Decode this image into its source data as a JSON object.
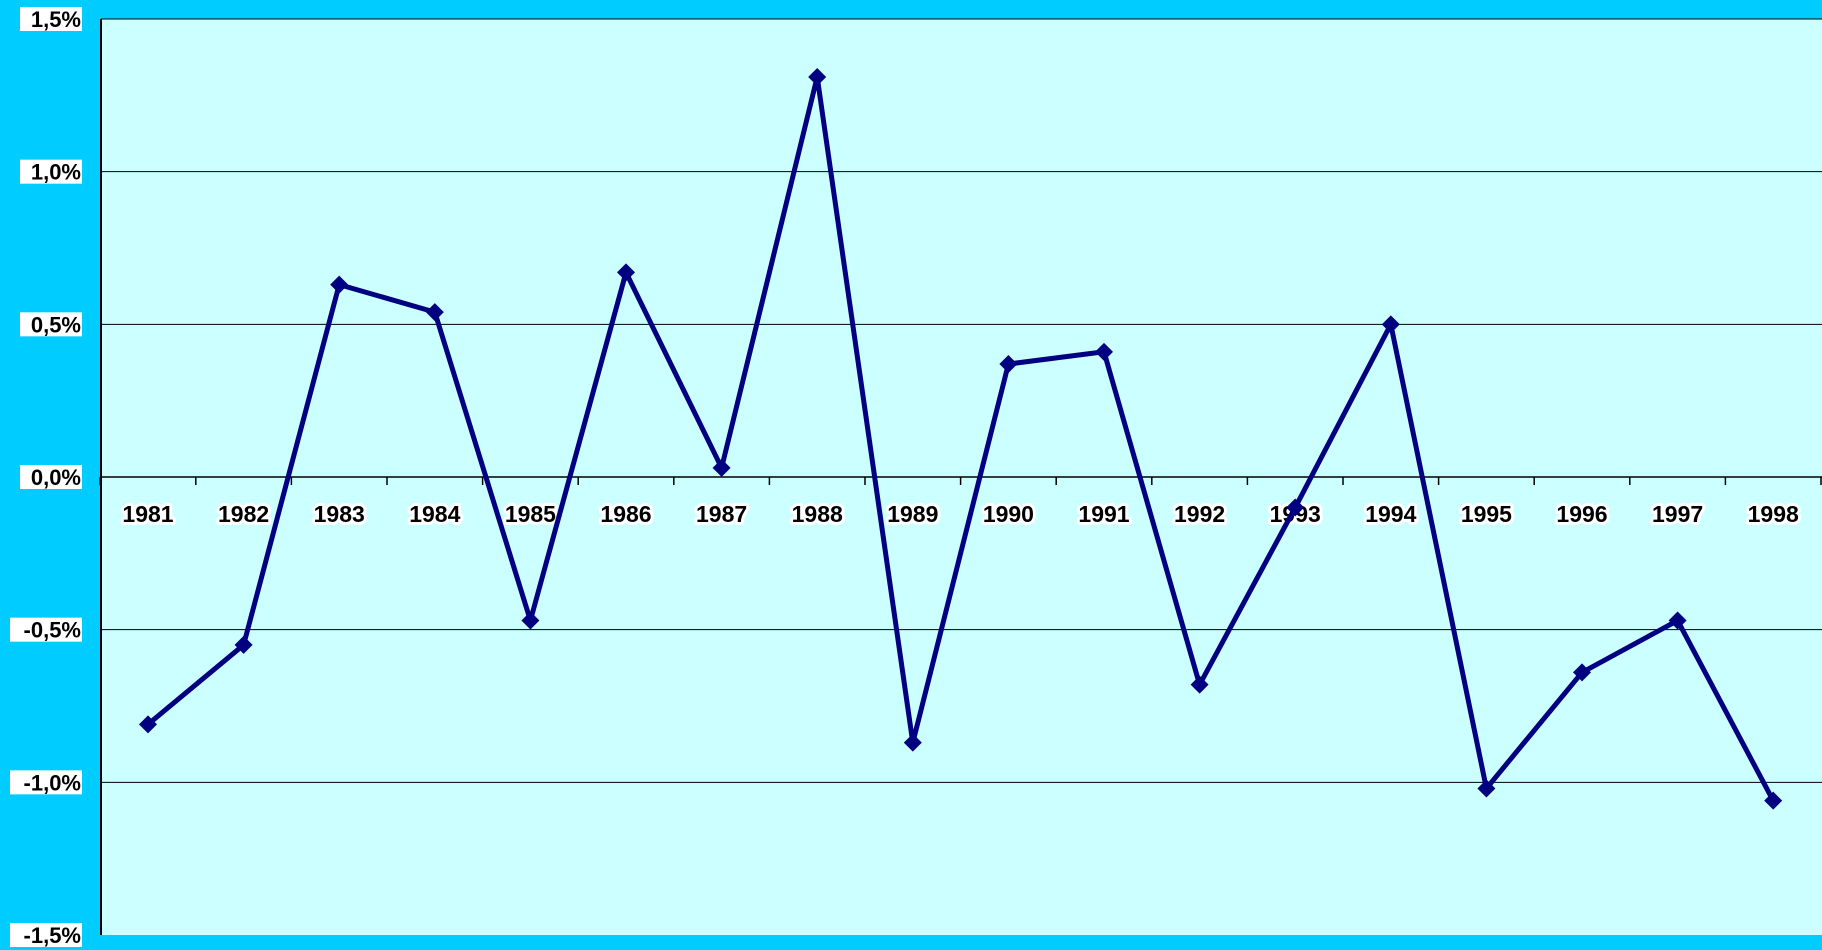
{
  "colors": {
    "background": "#00CCFF",
    "plot_area": "#CCFFFF",
    "series_line": "#000080",
    "gridline": "#000000",
    "label_background": "#FFFFFF"
  },
  "chart_data": {
    "type": "line",
    "title": "",
    "xlabel": "",
    "ylabel": "",
    "ylim": [
      -0.015,
      0.015
    ],
    "grid": true,
    "legend": "none",
    "y_ticks": [
      {
        "value": 0.015,
        "label": "1,5%"
      },
      {
        "value": 0.01,
        "label": "1,0%"
      },
      {
        "value": 0.005,
        "label": "0,5%"
      },
      {
        "value": 0.0,
        "label": "0,0%"
      },
      {
        "value": -0.005,
        "label": "-0,5%"
      },
      {
        "value": -0.01,
        "label": "-1,0%"
      },
      {
        "value": -0.015,
        "label": "-1,5%"
      }
    ],
    "categories": [
      "1981",
      "1982",
      "1983",
      "1984",
      "1985",
      "1986",
      "1987",
      "1988",
      "1989",
      "1990",
      "1991",
      "1992",
      "1993",
      "1994",
      "1995",
      "1996",
      "1997",
      "1998"
    ],
    "series": [
      {
        "values": [
          -0.0081,
          -0.0055,
          0.0063,
          0.0054,
          -0.0047,
          0.0067,
          0.0003,
          0.0131,
          -0.0087,
          0.0037,
          0.0041,
          -0.0068,
          -0.001,
          0.005,
          -0.0102,
          -0.0064,
          -0.0047,
          -0.0106
        ]
      }
    ]
  }
}
